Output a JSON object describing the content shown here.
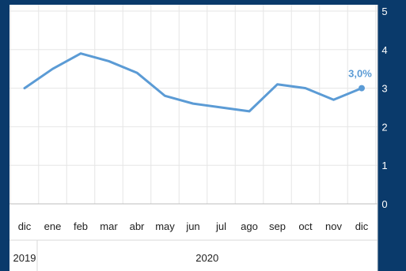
{
  "chart_data": {
    "type": "line",
    "categories": [
      "dic",
      "ene",
      "feb",
      "mar",
      "abr",
      "may",
      "jun",
      "jul",
      "ago",
      "sep",
      "oct",
      "nov",
      "dic"
    ],
    "series": [
      {
        "values": [
          3.0,
          3.5,
          3.9,
          3.7,
          3.4,
          2.8,
          2.6,
          2.5,
          2.4,
          3.1,
          3.0,
          2.7,
          3.0
        ]
      }
    ],
    "year_groups": [
      {
        "label": "2019",
        "from": 0,
        "to": 0
      },
      {
        "label": "2020",
        "from": 1,
        "to": 12
      }
    ],
    "y_ticks": [
      "0",
      "1",
      "2",
      "3",
      "4",
      "5"
    ],
    "ylim": [
      0,
      5
    ],
    "last_value_label": "3,0%",
    "grid": true,
    "title": "",
    "xlabel": "",
    "ylabel": "",
    "colors": {
      "line": "#5b9bd5",
      "background": "#0a3a6b",
      "plot": "#ffffff",
      "grid": "#e6e6e6"
    }
  }
}
